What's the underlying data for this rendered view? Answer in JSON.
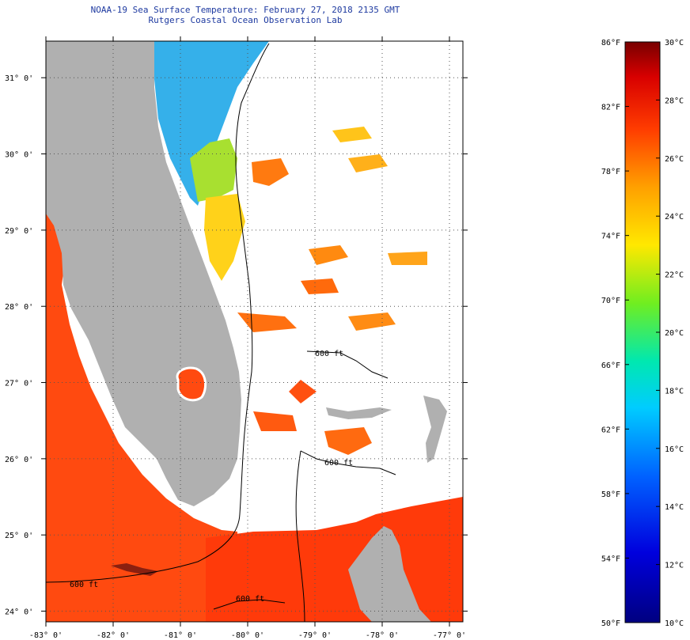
{
  "header": {
    "title_line1": "NOAA-19 Sea Surface Temperature:  February 27, 2018 2135 GMT",
    "title_line2": "Rutgers Coastal Ocean Observation Lab"
  },
  "map": {
    "lat_ticks": [
      {
        "value": 31,
        "label": "31° 0'"
      },
      {
        "value": 30,
        "label": "30° 0'"
      },
      {
        "value": 29,
        "label": "29° 0'"
      },
      {
        "value": 28,
        "label": "28° 0'"
      },
      {
        "value": 27,
        "label": "27° 0'"
      },
      {
        "value": 26,
        "label": "26° 0'"
      },
      {
        "value": 25,
        "label": "25° 0'"
      },
      {
        "value": 24,
        "label": "24° 0'"
      }
    ],
    "lon_ticks": [
      {
        "value": -83,
        "label": "-83° 0'"
      },
      {
        "value": -82,
        "label": "-82° 0'"
      },
      {
        "value": -81,
        "label": "-81° 0'"
      },
      {
        "value": -80,
        "label": "-80° 0'"
      },
      {
        "value": -79,
        "label": "-79° 0'"
      },
      {
        "value": -78,
        "label": "-78° 0'"
      },
      {
        "value": -77,
        "label": "-77° 0'"
      }
    ],
    "lat_range": [
      23.86,
      31.48
    ],
    "lon_range": [
      -83.0,
      -76.8
    ],
    "contour_label": "600 ft",
    "colors": {
      "land": "#b0b0b0",
      "warm_water": "#ff4400",
      "cool_water": "#2aa0ee",
      "no_data": "#ffffff"
    }
  },
  "colorbar": {
    "f_labels": [
      {
        "value": 86,
        "label": "86°F"
      },
      {
        "value": 82,
        "label": "82°F"
      },
      {
        "value": 78,
        "label": "78°F"
      },
      {
        "value": 74,
        "label": "74°F"
      },
      {
        "value": 70,
        "label": "70°F"
      },
      {
        "value": 66,
        "label": "66°F"
      },
      {
        "value": 62,
        "label": "62°F"
      },
      {
        "value": 58,
        "label": "58°F"
      },
      {
        "value": 54,
        "label": "54°F"
      },
      {
        "value": 50,
        "label": "50°F"
      }
    ],
    "c_labels": [
      {
        "value": 30,
        "label": "30°C"
      },
      {
        "value": 28,
        "label": "28°C"
      },
      {
        "value": 26,
        "label": "26°C"
      },
      {
        "value": 24,
        "label": "24°C"
      },
      {
        "value": 22,
        "label": "22°C"
      },
      {
        "value": 20,
        "label": "20°C"
      },
      {
        "value": 18,
        "label": "18°C"
      },
      {
        "value": 16,
        "label": "16°C"
      },
      {
        "value": 14,
        "label": "14°C"
      },
      {
        "value": 12,
        "label": "12°C"
      },
      {
        "value": 10,
        "label": "10°C"
      }
    ],
    "range_f": [
      50,
      86
    ],
    "range_c": [
      10,
      30
    ]
  }
}
